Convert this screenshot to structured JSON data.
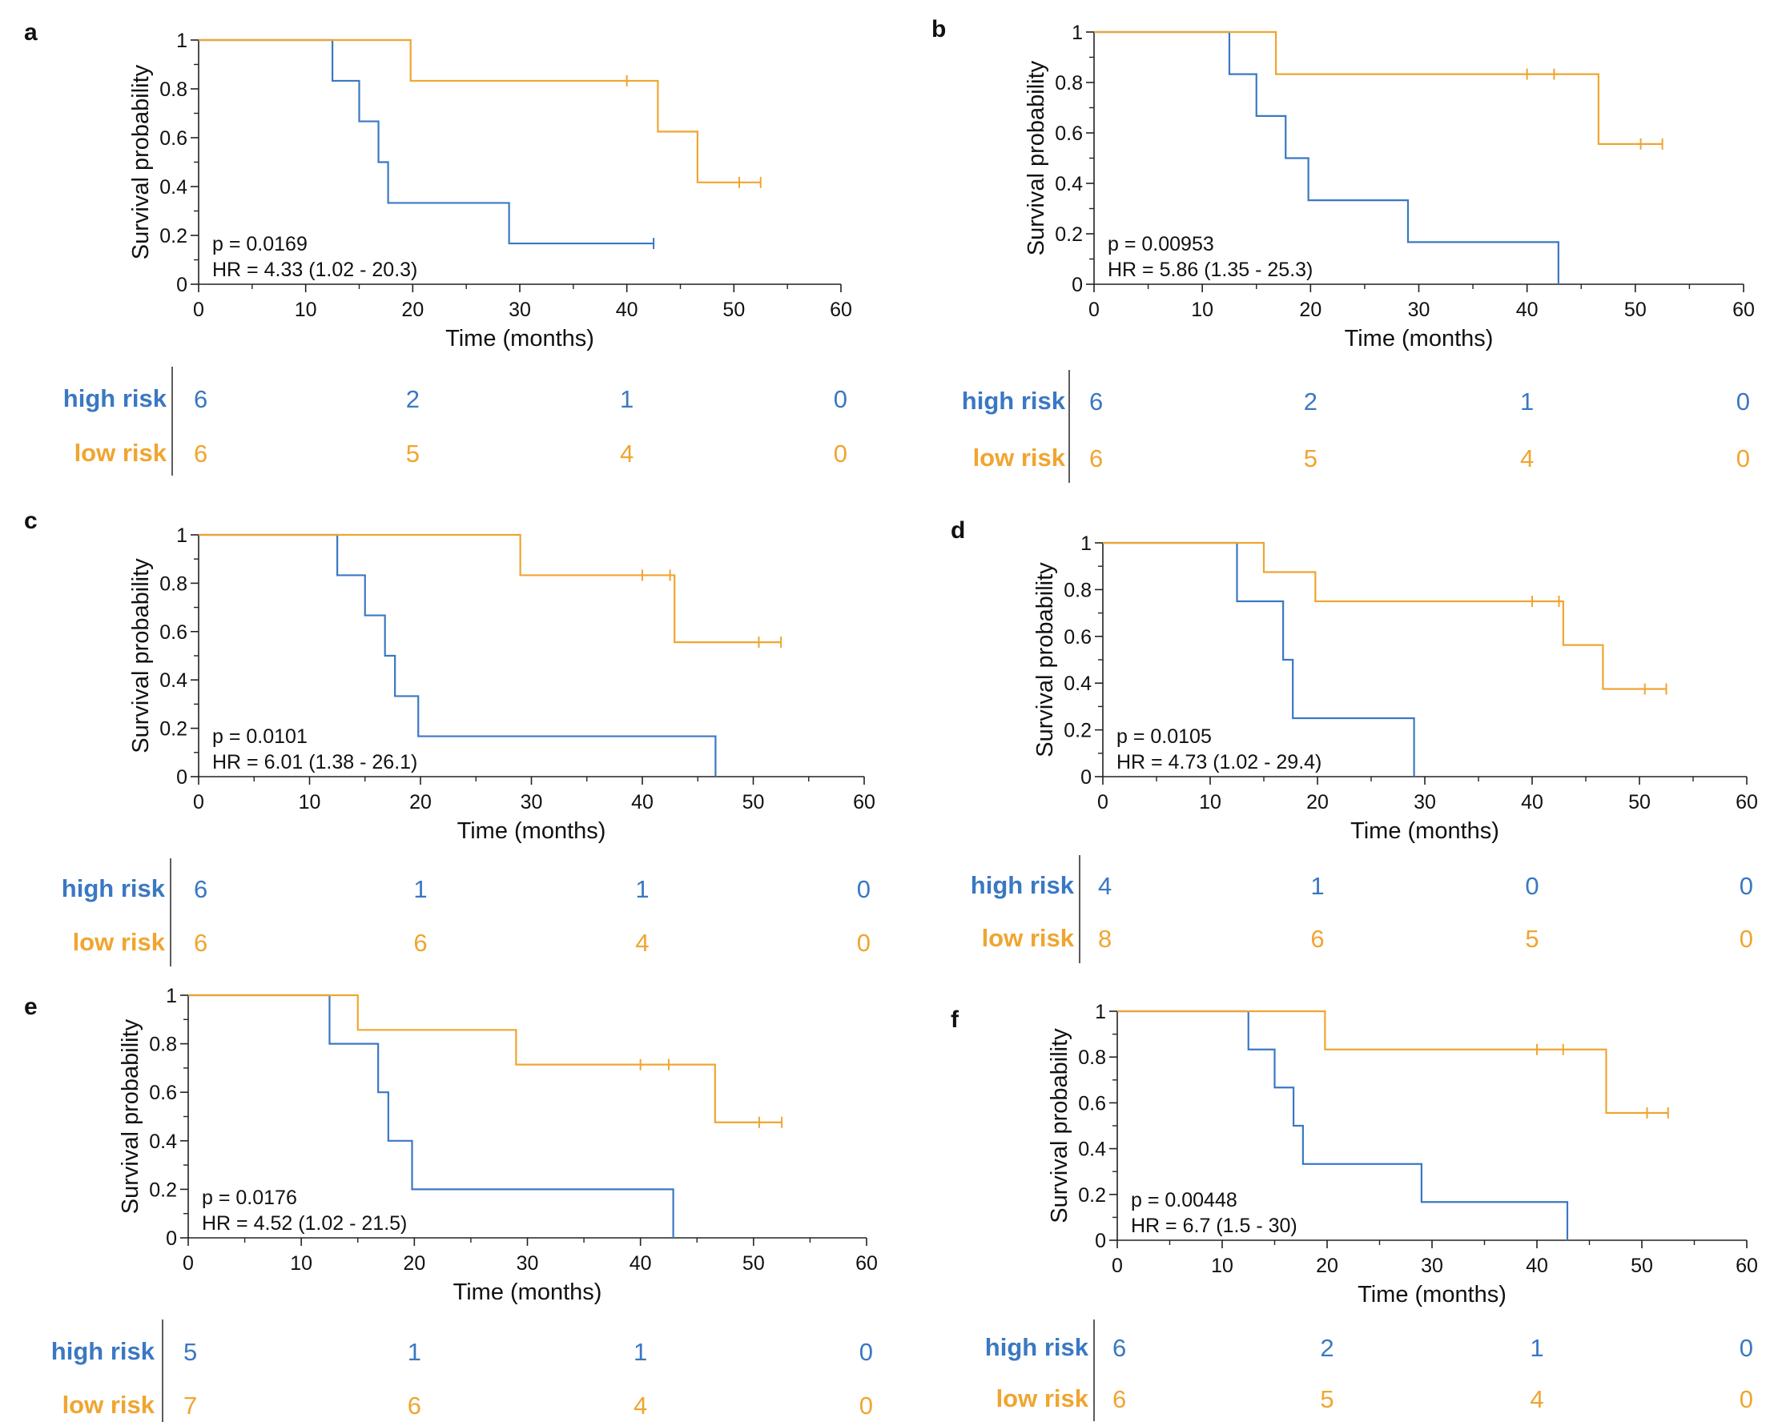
{
  "colors": {
    "high": "#3a78c3",
    "low": "#f0a530",
    "axis": "#222222"
  },
  "panel_labels": [
    "a",
    "b",
    "c",
    "d",
    "e",
    "f"
  ],
  "common": {
    "ylabel": "Survival probability",
    "xlabel": "Time (months)",
    "risk_high_label": "high risk",
    "risk_low_label": "low risk"
  },
  "chart_data": [
    {
      "type": "line",
      "step": true,
      "panel": "a",
      "xlabel": "Time (months)",
      "ylabel": "Survival probability",
      "xlim": [
        0,
        60
      ],
      "ylim": [
        0,
        1
      ],
      "xticks": [
        0,
        10,
        20,
        30,
        40,
        50,
        60
      ],
      "yticks": [
        0,
        0.2,
        0.4,
        0.6,
        0.8,
        1
      ],
      "ytick_labels": [
        "0",
        "0.2",
        "0.4",
        "0.6",
        "0.8",
        "1"
      ],
      "annotations": [
        "p = 0.0169",
        "HR = 4.33 (1.02 - 20.3)"
      ],
      "series": [
        {
          "name": "high risk",
          "end": 42.5,
          "steps": [
            [
              12.5,
              0.833
            ],
            [
              15,
              0.667
            ],
            [
              16.8,
              0.5
            ],
            [
              17.7,
              0.333
            ],
            [
              29,
              0.167
            ]
          ],
          "censor": [
            [
              42.5,
              0.167
            ]
          ]
        },
        {
          "name": "low risk",
          "end": 52.5,
          "steps": [
            [
              19.8,
              0.833
            ],
            [
              42.9,
              0.625
            ],
            [
              46.6,
              0.417
            ]
          ],
          "censor": [
            [
              40,
              0.833
            ],
            [
              50.5,
              0.417
            ],
            [
              52.5,
              0.417
            ]
          ]
        }
      ],
      "risk_table": {
        "times": [
          0,
          20,
          40,
          60
        ],
        "high": [
          "6",
          "2",
          "1",
          "0"
        ],
        "low": [
          "6",
          "5",
          "4",
          "0"
        ]
      }
    },
    {
      "type": "line",
      "step": true,
      "panel": "b",
      "xlabel": "Time (months)",
      "ylabel": "Survival probability",
      "xlim": [
        0,
        60
      ],
      "ylim": [
        0,
        1
      ],
      "xticks": [
        0,
        10,
        20,
        30,
        40,
        50,
        60
      ],
      "yticks": [
        0,
        0.2,
        0.4,
        0.6,
        0.8,
        1
      ],
      "ytick_labels": [
        "0",
        "0.2",
        "0.4",
        "0.6",
        "0.8",
        "1"
      ],
      "annotations": [
        "p = 0.00953",
        "HR = 5.86 (1.35 - 25.3)"
      ],
      "series": [
        {
          "name": "high risk",
          "end": 42.9,
          "steps": [
            [
              12.5,
              0.833
            ],
            [
              15,
              0.667
            ],
            [
              17.7,
              0.5
            ],
            [
              19.8,
              0.333
            ],
            [
              29,
              0.167
            ],
            [
              42.9,
              0
            ]
          ],
          "censor": []
        },
        {
          "name": "low risk",
          "end": 52.5,
          "steps": [
            [
              16.8,
              0.833
            ],
            [
              46.6,
              0.556
            ]
          ],
          "censor": [
            [
              40,
              0.833
            ],
            [
              42.5,
              0.833
            ],
            [
              50.5,
              0.556
            ],
            [
              52.5,
              0.556
            ]
          ]
        }
      ],
      "risk_table": {
        "times": [
          0,
          20,
          40,
          60
        ],
        "high": [
          "6",
          "2",
          "1",
          "0"
        ],
        "low": [
          "6",
          "5",
          "4",
          "0"
        ]
      }
    },
    {
      "type": "line",
      "step": true,
      "panel": "c",
      "xlabel": "Time (months)",
      "ylabel": "Survival probability",
      "xlim": [
        0,
        60
      ],
      "ylim": [
        0,
        1
      ],
      "xticks": [
        0,
        10,
        20,
        30,
        40,
        50,
        60
      ],
      "yticks": [
        0,
        0.2,
        0.4,
        0.6,
        0.8,
        1
      ],
      "ytick_labels": [
        "0",
        "0.2",
        "0.4",
        "0.6",
        "0.8",
        "1"
      ],
      "annotations": [
        "p = 0.0101",
        "HR = 6.01 (1.38 - 26.1)"
      ],
      "series": [
        {
          "name": "high risk",
          "end": 46.6,
          "steps": [
            [
              12.5,
              0.833
            ],
            [
              15,
              0.667
            ],
            [
              16.8,
              0.5
            ],
            [
              17.7,
              0.333
            ],
            [
              19.8,
              0.167
            ],
            [
              46.6,
              0
            ]
          ],
          "censor": []
        },
        {
          "name": "low risk",
          "end": 52.5,
          "steps": [
            [
              29,
              0.833
            ],
            [
              42.9,
              0.556
            ]
          ],
          "censor": [
            [
              40,
              0.833
            ],
            [
              42.5,
              0.833
            ],
            [
              50.5,
              0.556
            ],
            [
              52.5,
              0.556
            ]
          ]
        }
      ],
      "risk_table": {
        "times": [
          0,
          20,
          40,
          60
        ],
        "high": [
          "6",
          "1",
          "1",
          "0"
        ],
        "low": [
          "6",
          "6",
          "4",
          "0"
        ]
      }
    },
    {
      "type": "line",
      "step": true,
      "panel": "d",
      "xlabel": "Time (months)",
      "ylabel": "Survival probability",
      "xlim": [
        0,
        60
      ],
      "ylim": [
        0,
        1
      ],
      "xticks": [
        0,
        10,
        20,
        30,
        40,
        50,
        60
      ],
      "yticks": [
        0,
        0.2,
        0.4,
        0.6,
        0.8,
        1
      ],
      "ytick_labels": [
        "0",
        "0.2",
        "0.4",
        "0.6",
        "0.8",
        "1"
      ],
      "annotations": [
        "p = 0.0105",
        "HR = 4.73 (1.02 - 29.4)"
      ],
      "series": [
        {
          "name": "high risk",
          "end": 29,
          "steps": [
            [
              12.5,
              0.75
            ],
            [
              16.8,
              0.5
            ],
            [
              17.7,
              0.25
            ],
            [
              29,
              0
            ]
          ],
          "censor": []
        },
        {
          "name": "low risk",
          "end": 52.5,
          "steps": [
            [
              15,
              0.875
            ],
            [
              19.8,
              0.75
            ],
            [
              42.9,
              0.563
            ],
            [
              46.6,
              0.375
            ]
          ],
          "censor": [
            [
              40,
              0.75
            ],
            [
              42.5,
              0.75
            ],
            [
              50.5,
              0.375
            ],
            [
              52.5,
              0.375
            ]
          ]
        }
      ],
      "risk_table": {
        "times": [
          0,
          20,
          40,
          60
        ],
        "high": [
          "4",
          "1",
          "0",
          "0"
        ],
        "low": [
          "8",
          "6",
          "5",
          "0"
        ]
      }
    },
    {
      "type": "line",
      "step": true,
      "panel": "e",
      "xlabel": "Time (months)",
      "ylabel": "Survival probability",
      "xlim": [
        0,
        60
      ],
      "ylim": [
        0,
        1
      ],
      "xticks": [
        0,
        10,
        20,
        30,
        40,
        50,
        60
      ],
      "yticks": [
        0,
        0.2,
        0.4,
        0.6,
        0.8,
        1
      ],
      "ytick_labels": [
        "0",
        "0.2",
        "0.4",
        "0.6",
        "0.8",
        "1"
      ],
      "annotations": [
        "p = 0.0176",
        "HR = 4.52 (1.02 - 21.5)"
      ],
      "series": [
        {
          "name": "high risk",
          "end": 42.9,
          "steps": [
            [
              12.5,
              0.8
            ],
            [
              16.8,
              0.6
            ],
            [
              17.7,
              0.4
            ],
            [
              19.8,
              0.2
            ],
            [
              42.9,
              0
            ]
          ],
          "censor": []
        },
        {
          "name": "low risk",
          "end": 52.5,
          "steps": [
            [
              15,
              0.857
            ],
            [
              29,
              0.714
            ],
            [
              46.6,
              0.476
            ]
          ],
          "censor": [
            [
              40,
              0.714
            ],
            [
              42.5,
              0.714
            ],
            [
              50.5,
              0.476
            ],
            [
              52.5,
              0.476
            ]
          ]
        }
      ],
      "risk_table": {
        "times": [
          0,
          20,
          40,
          60
        ],
        "high": [
          "5",
          "1",
          "1",
          "0"
        ],
        "low": [
          "7",
          "6",
          "4",
          "0"
        ]
      }
    },
    {
      "type": "line",
      "step": true,
      "panel": "f",
      "xlabel": "Time (months)",
      "ylabel": "Survival probability",
      "xlim": [
        0,
        60
      ],
      "ylim": [
        0,
        1
      ],
      "xticks": [
        0,
        10,
        20,
        30,
        40,
        50,
        60
      ],
      "yticks": [
        0,
        0.2,
        0.4,
        0.6,
        0.8,
        1
      ],
      "ytick_labels": [
        "0",
        "0.2",
        "0.4",
        "0.6",
        "0.8",
        "1"
      ],
      "annotations": [
        "p = 0.00448",
        "HR = 6.7 (1.5 - 30)"
      ],
      "series": [
        {
          "name": "high risk",
          "end": 42.9,
          "steps": [
            [
              12.5,
              0.833
            ],
            [
              15,
              0.667
            ],
            [
              16.8,
              0.5
            ],
            [
              17.7,
              0.333
            ],
            [
              29,
              0.167
            ],
            [
              42.9,
              0
            ]
          ],
          "censor": []
        },
        {
          "name": "low risk",
          "end": 52.5,
          "steps": [
            [
              19.8,
              0.833
            ],
            [
              46.6,
              0.556
            ]
          ],
          "censor": [
            [
              40,
              0.833
            ],
            [
              42.5,
              0.833
            ],
            [
              50.5,
              0.556
            ],
            [
              52.5,
              0.556
            ]
          ]
        }
      ],
      "risk_table": {
        "times": [
          0,
          20,
          40,
          60
        ],
        "high": [
          "6",
          "2",
          "1",
          "0"
        ],
        "low": [
          "6",
          "5",
          "4",
          "0"
        ]
      }
    }
  ]
}
